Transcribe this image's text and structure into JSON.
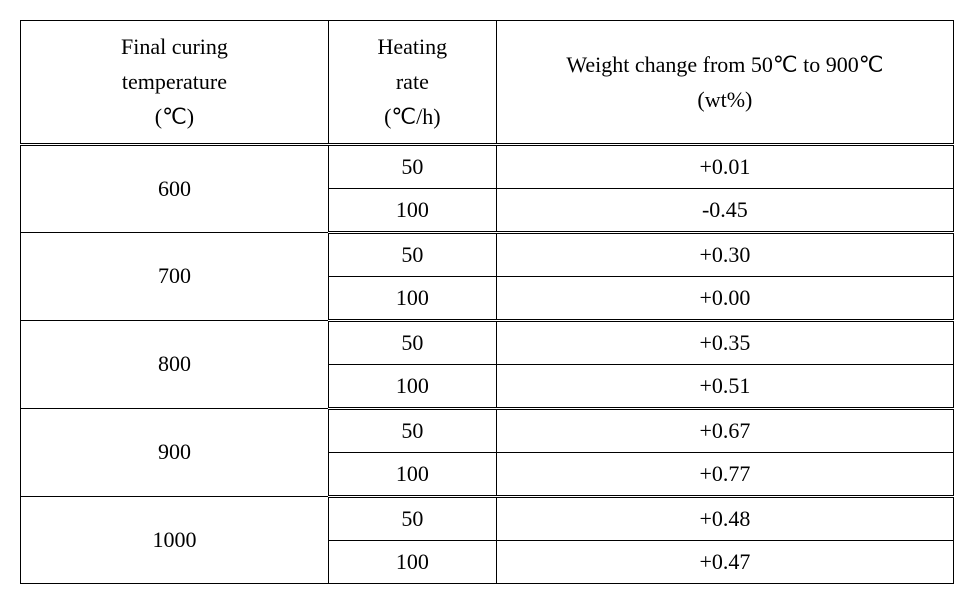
{
  "table": {
    "type": "table",
    "columns": [
      {
        "header_line1": "Final curing",
        "header_line2": "temperature",
        "header_line3": "(℃)",
        "width_pct": 33,
        "align": "center"
      },
      {
        "header_line1": "Heating",
        "header_line2": "rate",
        "header_line3": "(℃/h)",
        "width_pct": 18,
        "align": "center"
      },
      {
        "header_line1": "Weight change from 50℃ to 900℃",
        "header_line2": "(wt%)",
        "width_pct": 49,
        "align": "center"
      }
    ],
    "groups": [
      {
        "temp": "600",
        "rows": [
          {
            "rate": "50",
            "weight": "+0.01"
          },
          {
            "rate": "100",
            "weight": "-0.45"
          }
        ]
      },
      {
        "temp": "700",
        "rows": [
          {
            "rate": "50",
            "weight": "+0.30"
          },
          {
            "rate": "100",
            "weight": "+0.00"
          }
        ]
      },
      {
        "temp": "800",
        "rows": [
          {
            "rate": "50",
            "weight": "+0.35"
          },
          {
            "rate": "100",
            "weight": "+0.51"
          }
        ]
      },
      {
        "temp": "900",
        "rows": [
          {
            "rate": "50",
            "weight": "+0.67"
          },
          {
            "rate": "100",
            "weight": "+0.77"
          }
        ]
      },
      {
        "temp": "1000",
        "rows": [
          {
            "rate": "50",
            "weight": "+0.48"
          },
          {
            "rate": "100",
            "weight": "+0.47"
          }
        ]
      }
    ],
    "styling": {
      "border_color": "#000000",
      "background_color": "#ffffff",
      "text_color": "#000000",
      "font_family": "Times New Roman, serif",
      "font_size_pt": 17,
      "double_border_between_groups": true,
      "group_rowspan": 2
    }
  }
}
